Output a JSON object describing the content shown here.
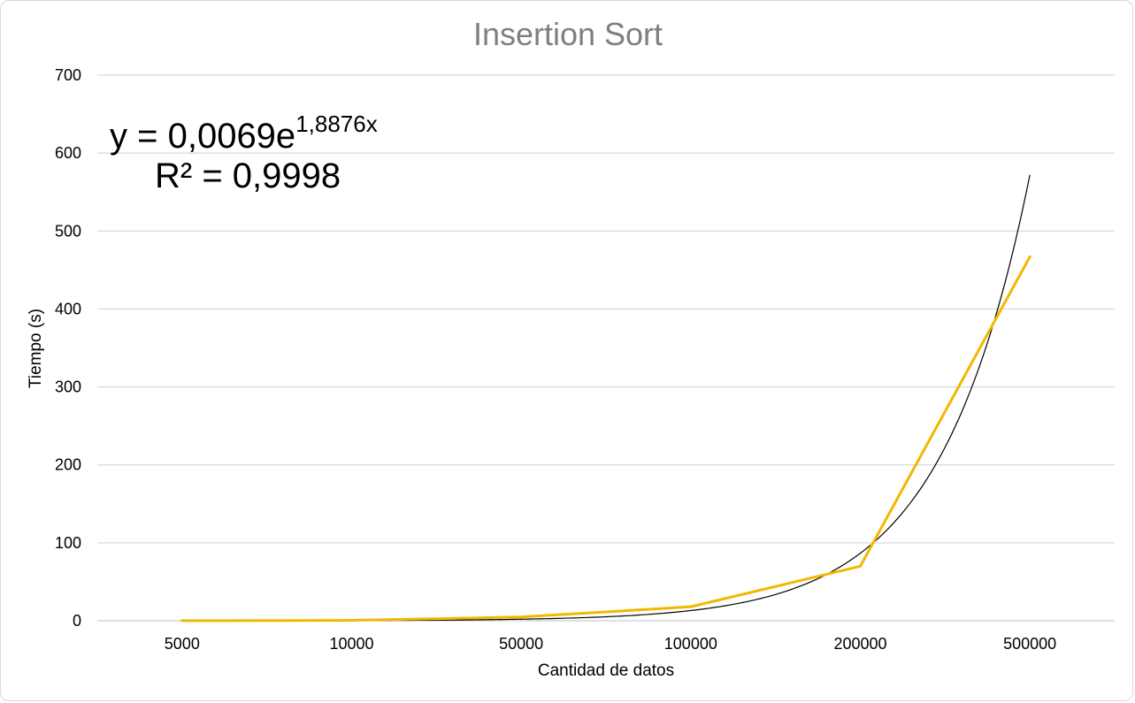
{
  "chart_data": {
    "type": "line",
    "title": "Insertion Sort",
    "xlabel": "Cantidad de datos",
    "ylabel": "Tiempo (s)",
    "categories": [
      "5000",
      "10000",
      "50000",
      "100000",
      "200000",
      "500000"
    ],
    "ylim": [
      0,
      700
    ],
    "yticks": [
      0,
      100,
      200,
      300,
      400,
      500,
      600,
      700
    ],
    "grid": true,
    "series": [
      {
        "values": [
          0.1,
          0.5,
          4.8,
          18,
          70,
          467
        ],
        "color": "#f2b800"
      }
    ],
    "trendline": {
      "type": "exponential",
      "a": 0.0069,
      "b": 1.8876,
      "color": "#000000",
      "equation_text": "y = 0,0069e",
      "equation_exponent": "1,8876x",
      "r2_text": "R² = 0,9998"
    }
  }
}
